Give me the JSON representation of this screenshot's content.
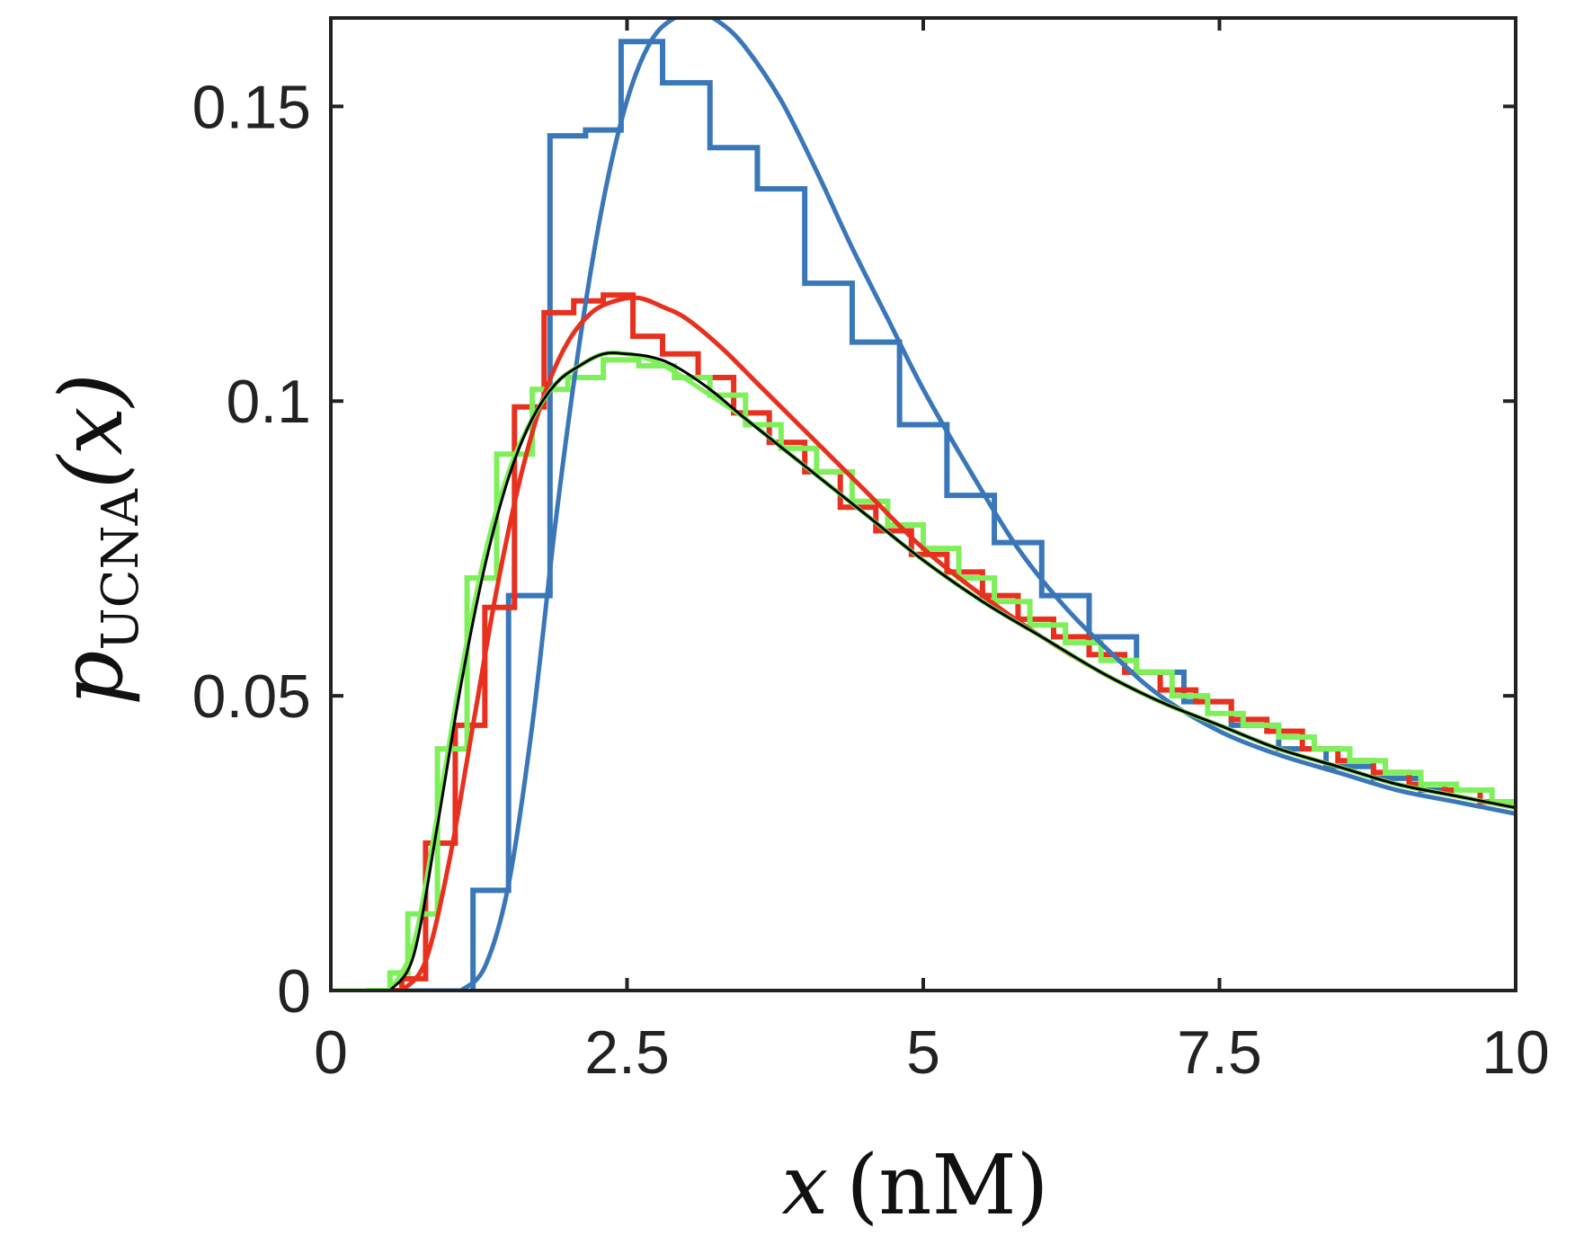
{
  "chart_data": {
    "type": "line",
    "title": "",
    "xlabel": {
      "variable": "x",
      "unit": "(nM)"
    },
    "ylabel": {
      "prefix": "p",
      "subscript": "UCNA",
      "arg": "(x)"
    },
    "xlim": [
      0,
      10
    ],
    "ylim": [
      0,
      0.165
    ],
    "x_ticks": [
      0,
      2.5,
      5,
      7.5,
      10
    ],
    "x_tick_labels": [
      "0",
      "2.5",
      "5",
      "7.5",
      "10"
    ],
    "y_ticks": [
      0,
      0.05,
      0.1,
      0.15
    ],
    "y_tick_labels": [
      "0",
      "0.05",
      "0.1",
      "0.15"
    ],
    "grid": false,
    "colors": {
      "blue": "#3a77b8",
      "red": "#e8301e",
      "green": "#7ef05a",
      "black": "#000000",
      "axis": "#222222"
    },
    "histograms": [
      {
        "name": "blue histogram",
        "color": "#3a77b8",
        "edges": [
          1.2,
          1.5,
          1.85,
          2.15,
          2.45,
          2.8,
          3.2,
          3.6,
          4.0,
          4.4,
          4.8,
          5.2,
          5.6,
          6.0,
          6.4,
          6.8,
          7.2,
          7.6,
          8.0,
          8.4,
          8.8,
          9.2,
          9.6
        ],
        "values": [
          0.017,
          0.067,
          0.145,
          0.146,
          0.161,
          0.154,
          0.143,
          0.136,
          0.12,
          0.11,
          0.096,
          0.084,
          0.076,
          0.067,
          0.06,
          0.054,
          0.049,
          0.045,
          0.041,
          0.038,
          0.036,
          0.034
        ]
      },
      {
        "name": "red histogram",
        "color": "#e8301e",
        "edges": [
          0.4,
          0.6,
          0.8,
          1.05,
          1.3,
          1.55,
          1.8,
          2.05,
          2.3,
          2.55,
          2.8,
          3.1,
          3.4,
          3.7,
          4.0,
          4.3,
          4.6,
          4.9,
          5.2,
          5.5,
          5.8,
          6.1,
          6.4,
          6.7,
          7.0,
          7.3,
          7.6,
          7.9,
          8.2,
          8.5,
          8.8,
          9.1,
          9.4,
          9.7,
          10.0
        ],
        "values": [
          0.0,
          0.002,
          0.025,
          0.045,
          0.065,
          0.099,
          0.115,
          0.117,
          0.118,
          0.111,
          0.108,
          0.104,
          0.098,
          0.093,
          0.088,
          0.082,
          0.078,
          0.074,
          0.071,
          0.067,
          0.063,
          0.06,
          0.057,
          0.054,
          0.051,
          0.049,
          0.046,
          0.044,
          0.041,
          0.039,
          0.037,
          0.035,
          0.034,
          0.032
        ]
      },
      {
        "name": "green histogram",
        "color": "#7ef05a",
        "edges": [
          0.3,
          0.5,
          0.65,
          0.9,
          1.15,
          1.4,
          1.7,
          2.0,
          2.3,
          2.6,
          2.9,
          3.2,
          3.5,
          3.8,
          4.1,
          4.4,
          4.7,
          5.0,
          5.3,
          5.6,
          5.9,
          6.2,
          6.5,
          6.8,
          7.1,
          7.4,
          7.7,
          8.0,
          8.3,
          8.6,
          8.9,
          9.2,
          9.5,
          9.8,
          10.0
        ],
        "values": [
          0.0,
          0.003,
          0.013,
          0.041,
          0.07,
          0.091,
          0.102,
          0.104,
          0.107,
          0.106,
          0.104,
          0.101,
          0.096,
          0.092,
          0.088,
          0.083,
          0.079,
          0.075,
          0.07,
          0.066,
          0.062,
          0.059,
          0.056,
          0.054,
          0.05,
          0.047,
          0.045,
          0.043,
          0.041,
          0.039,
          0.037,
          0.035,
          0.034,
          0.032
        ]
      }
    ],
    "series": [
      {
        "name": "blue fit",
        "color": "#3a77b8",
        "x": [
          1.1,
          1.3,
          1.5,
          1.7,
          1.9,
          2.1,
          2.3,
          2.5,
          2.7,
          2.9,
          3.1,
          3.3,
          3.5,
          3.8,
          4.1,
          4.4,
          4.7,
          5.0,
          5.4,
          5.8,
          6.2,
          6.6,
          7.0,
          7.5,
          8.0,
          8.5,
          9.0,
          9.5,
          10.0
        ],
        "y": [
          0.0,
          0.004,
          0.018,
          0.045,
          0.08,
          0.11,
          0.134,
          0.151,
          0.161,
          0.165,
          0.166,
          0.164,
          0.16,
          0.151,
          0.139,
          0.126,
          0.114,
          0.102,
          0.088,
          0.075,
          0.065,
          0.057,
          0.05,
          0.044,
          0.04,
          0.037,
          0.034,
          0.032,
          0.03
        ]
      },
      {
        "name": "red fit",
        "color": "#e8301e",
        "x": [
          0.6,
          0.8,
          1.0,
          1.2,
          1.4,
          1.6,
          1.8,
          2.0,
          2.2,
          2.4,
          2.6,
          2.8,
          3.0,
          3.3,
          3.6,
          4.0,
          4.5,
          5.0,
          5.5,
          6.0,
          6.5,
          7.0,
          7.5,
          8.0,
          8.5,
          9.0,
          9.5,
          10.0
        ],
        "y": [
          0.0,
          0.005,
          0.022,
          0.045,
          0.068,
          0.087,
          0.101,
          0.11,
          0.115,
          0.117,
          0.1175,
          0.116,
          0.114,
          0.109,
          0.103,
          0.095,
          0.085,
          0.075,
          0.067,
          0.06,
          0.054,
          0.049,
          0.045,
          0.041,
          0.038,
          0.035,
          0.033,
          0.031
        ]
      },
      {
        "name": "green fit",
        "color": "#7ef05a",
        "x": [
          0.5,
          0.7,
          0.9,
          1.1,
          1.3,
          1.5,
          1.7,
          1.9,
          2.1,
          2.3,
          2.5,
          2.7,
          2.9,
          3.2,
          3.5,
          4.0,
          4.5,
          5.0,
          5.5,
          6.0,
          6.5,
          7.0,
          7.5,
          8.0,
          8.5,
          9.0,
          9.5,
          10.0
        ],
        "y": [
          0.0,
          0.008,
          0.03,
          0.054,
          0.074,
          0.088,
          0.097,
          0.103,
          0.106,
          0.108,
          0.108,
          0.107,
          0.105,
          0.101,
          0.097,
          0.089,
          0.081,
          0.073,
          0.066,
          0.06,
          0.054,
          0.049,
          0.045,
          0.041,
          0.038,
          0.035,
          0.033,
          0.031
        ]
      },
      {
        "name": "black fit",
        "color": "#000000",
        "x": [
          0.5,
          0.7,
          0.9,
          1.1,
          1.3,
          1.5,
          1.7,
          1.9,
          2.1,
          2.3,
          2.5,
          2.7,
          2.9,
          3.2,
          3.5,
          4.0,
          4.5,
          5.0,
          5.5,
          6.0,
          6.5,
          7.0,
          7.5,
          8.0,
          8.5,
          9.0,
          9.5,
          10.0
        ],
        "y": [
          0.0,
          0.006,
          0.028,
          0.052,
          0.072,
          0.087,
          0.097,
          0.103,
          0.106,
          0.108,
          0.108,
          0.1075,
          0.106,
          0.102,
          0.097,
          0.089,
          0.081,
          0.073,
          0.066,
          0.06,
          0.054,
          0.049,
          0.045,
          0.041,
          0.038,
          0.035,
          0.033,
          0.031
        ]
      }
    ]
  }
}
